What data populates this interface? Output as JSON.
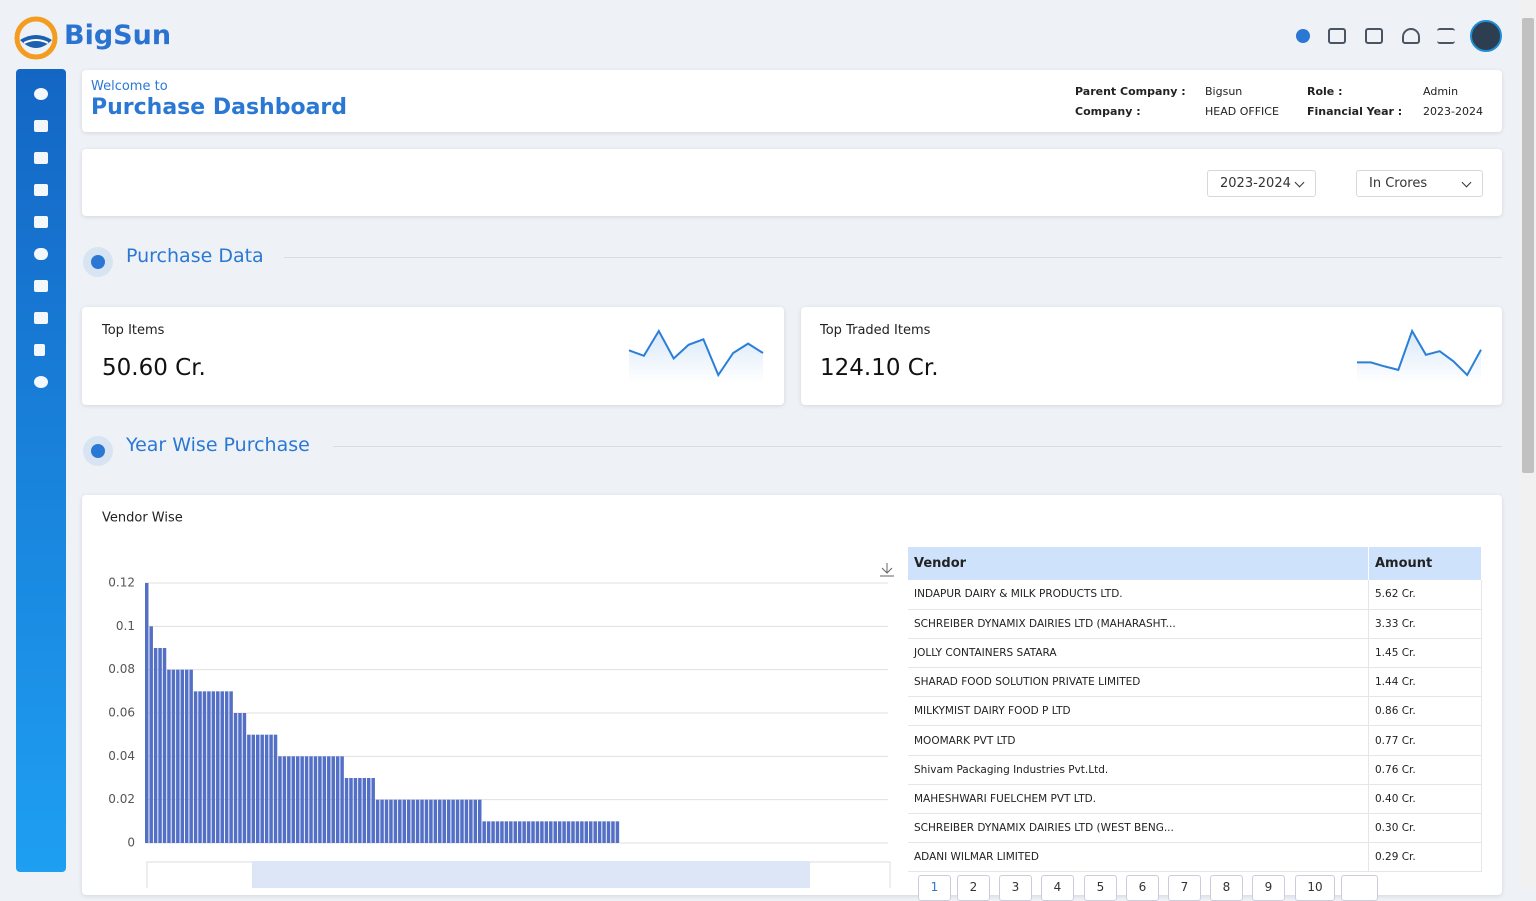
{
  "header": {
    "brand": "BigSun"
  },
  "welcome": {
    "greeting": "Welcome to",
    "title": "Purchase Dashboard",
    "info": [
      {
        "label": "Parent Company :",
        "value": "Bigsun"
      },
      {
        "label": "Role :",
        "value": "Admin"
      },
      {
        "label": "Company :",
        "value": "HEAD OFFICE"
      },
      {
        "label": "Financial Year :",
        "value": "2023-2024"
      }
    ]
  },
  "filters": {
    "year": "2023-2024",
    "unit": "In Crores"
  },
  "sections": [
    "Purchase Data",
    "Year Wise Purchase"
  ],
  "kpis": [
    {
      "label": "Top Items",
      "value": "50.60 Cr."
    },
    {
      "label": "Top Traded Items",
      "value": "124.10 Cr."
    }
  ],
  "chart_data": [
    {
      "type": "line",
      "color": "#2b7fd8",
      "values": [
        0.5,
        0.4,
        0.85,
        0.35,
        0.6,
        0.7,
        0.05,
        0.45,
        0.62,
        0.45
      ]
    },
    {
      "type": "line",
      "color": "#2b7fd8",
      "values": [
        0.3,
        0.3,
        0.22,
        0.15,
        0.92,
        0.45,
        0.52,
        0.32,
        0.05,
        0.55
      ]
    },
    {
      "type": "bar",
      "title": "Vendor Wise",
      "color": "#5470c6",
      "ylim": [
        0,
        0.12
      ],
      "yticks": [
        0,
        0.02,
        0.04,
        0.06,
        0.08,
        0.1,
        0.12
      ],
      "grid": true,
      "categories": [
        null,
        null,
        null,
        null,
        null,
        null,
        null,
        null,
        null,
        null,
        null,
        null,
        null,
        null,
        null,
        null,
        null,
        null,
        null,
        null,
        null,
        null,
        null,
        null,
        null,
        null,
        null,
        null,
        null,
        null,
        null,
        null,
        null,
        null,
        null,
        null,
        null,
        null,
        null,
        null,
        null,
        null,
        null,
        null,
        null,
        null,
        null,
        null,
        null,
        null,
        null,
        null,
        null,
        null,
        null,
        null,
        null,
        null,
        null,
        null,
        null,
        null,
        null,
        null,
        null,
        null,
        null,
        null,
        null,
        null,
        null,
        null,
        null,
        null,
        null,
        null,
        null,
        null,
        null,
        null,
        null,
        null,
        null,
        null,
        null,
        null,
        null,
        null,
        null,
        null,
        null,
        null,
        null,
        null,
        null,
        null,
        null,
        null,
        null,
        null,
        null,
        null,
        null,
        null,
        null,
        null,
        null
      ],
      "values": [
        0.12,
        0.1,
        0.09,
        0.09,
        0.09,
        0.08,
        0.08,
        0.08,
        0.08,
        0.08,
        0.08,
        0.07,
        0.07,
        0.07,
        0.07,
        0.07,
        0.07,
        0.07,
        0.07,
        0.07,
        0.06,
        0.06,
        0.06,
        0.05,
        0.05,
        0.05,
        0.05,
        0.05,
        0.05,
        0.05,
        0.04,
        0.04,
        0.04,
        0.04,
        0.04,
        0.04,
        0.04,
        0.04,
        0.04,
        0.04,
        0.04,
        0.04,
        0.04,
        0.04,
        0.04,
        0.03,
        0.03,
        0.03,
        0.03,
        0.03,
        0.03,
        0.03,
        0.02,
        0.02,
        0.02,
        0.02,
        0.02,
        0.02,
        0.02,
        0.02,
        0.02,
        0.02,
        0.02,
        0.02,
        0.02,
        0.02,
        0.02,
        0.02,
        0.02,
        0.02,
        0.02,
        0.02,
        0.02,
        0.02,
        0.02,
        0.02,
        0.01,
        0.01,
        0.01,
        0.01,
        0.01,
        0.01,
        0.01,
        0.01,
        0.01,
        0.01,
        0.01,
        0.01,
        0.01,
        0.01,
        0.01,
        0.01,
        0.01,
        0.01,
        0.01,
        0.01,
        0.01,
        0.01,
        0.01,
        0.01,
        0.01,
        0.01,
        0.01,
        0.01,
        0.01,
        0.01,
        0.01
      ]
    }
  ],
  "table": {
    "columns": [
      "Vendor",
      "Amount"
    ],
    "rows": [
      [
        "INDAPUR DAIRY & MILK PRODUCTS LTD.",
        "5.62 Cr."
      ],
      [
        "SCHREIBER DYNAMIX DAIRIES LTD (MAHARASHT...",
        "3.33 Cr."
      ],
      [
        "JOLLY CONTAINERS SATARA",
        "1.45 Cr."
      ],
      [
        "SHARAD FOOD SOLUTION PRIVATE LIMITED",
        "1.44 Cr."
      ],
      [
        "MILKYMIST DAIRY FOOD P LTD",
        "0.86 Cr."
      ],
      [
        "MOOMARK PVT LTD",
        "0.77 Cr."
      ],
      [
        "Shivam Packaging Industries Pvt.Ltd.",
        "0.76 Cr."
      ],
      [
        "MAHESHWARI FUELCHEM PVT LTD.",
        "0.40 Cr."
      ],
      [
        "SCHREIBER DYNAMIX DAIRIES LTD (WEST BENG...",
        "0.30 Cr."
      ],
      [
        "ADANI WILMAR LIMITED",
        "0.29 Cr."
      ]
    ]
  },
  "pagination": [
    "1",
    "2",
    "3",
    "4",
    "5",
    "6",
    "7",
    "8",
    "9",
    "10"
  ]
}
